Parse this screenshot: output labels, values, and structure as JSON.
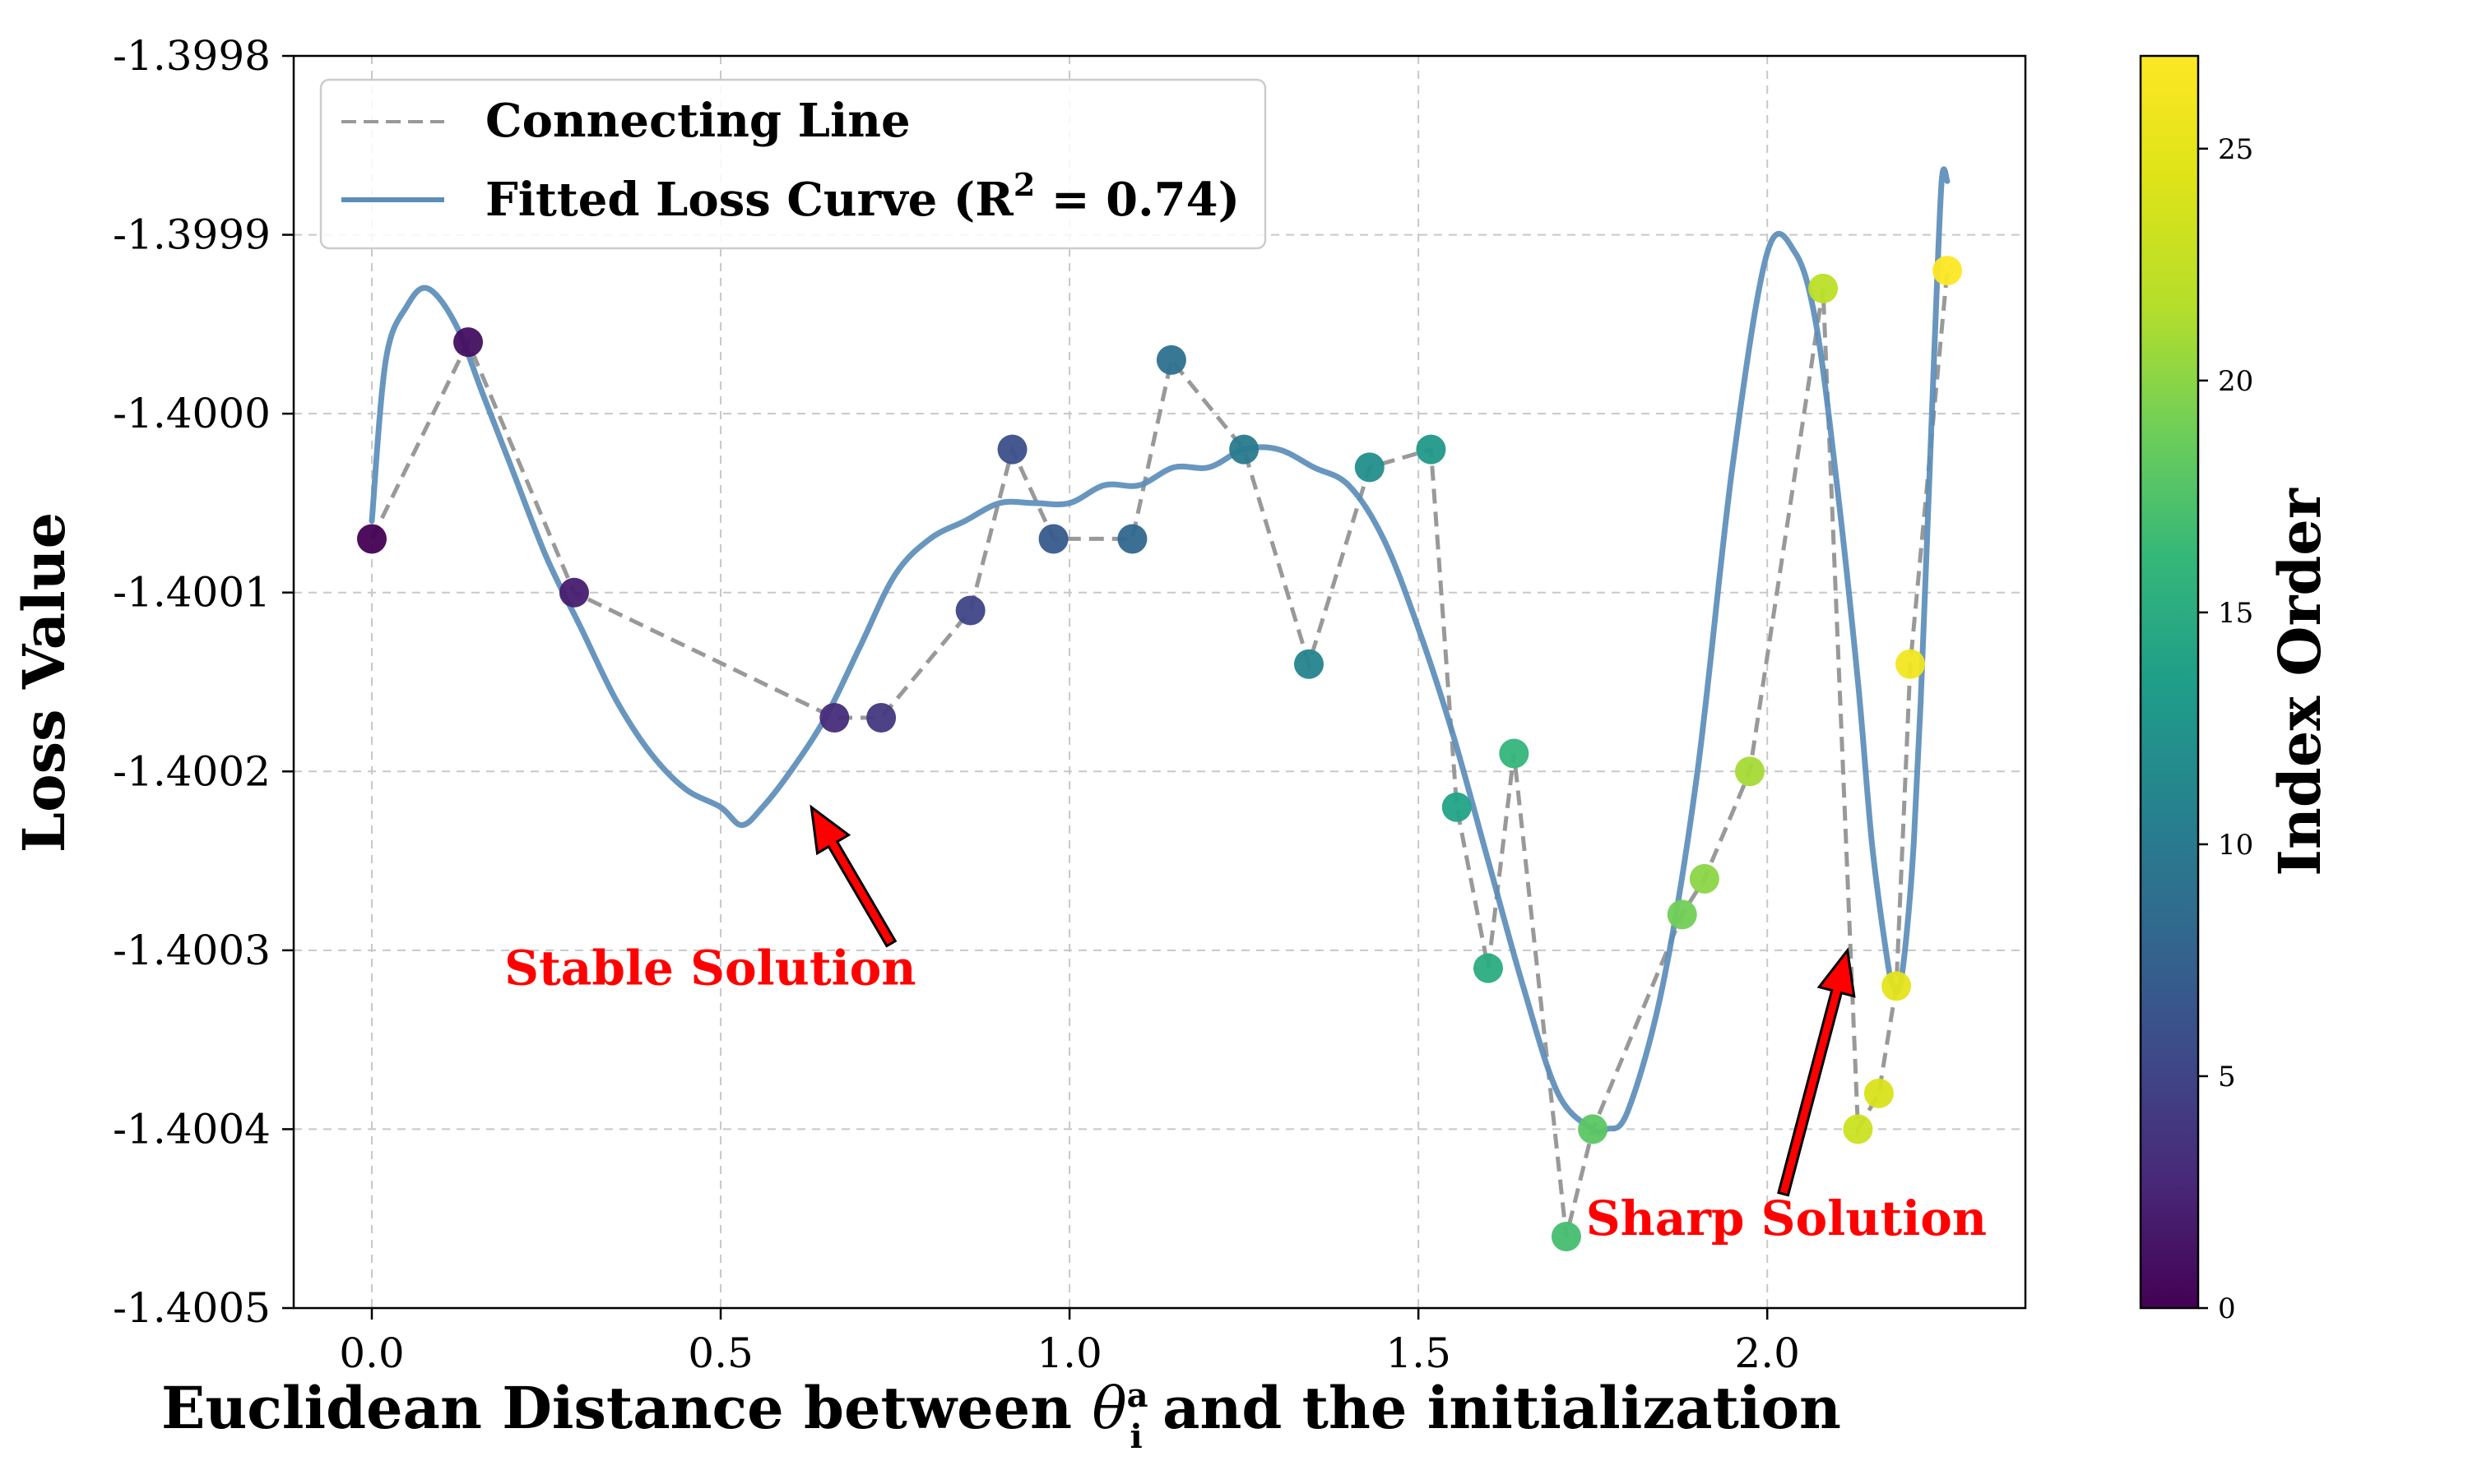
{
  "chart_data": {
    "type": "scatter",
    "xlabel_prefix": "Euclidean Distance between ",
    "xlabel_theta": "θ",
    "xlabel_sup": "a",
    "xlabel_sub": "i",
    "xlabel_suffix": " and the initialization",
    "ylabel": "Loss Value",
    "xlim": [
      -0.112,
      2.37
    ],
    "ylim": [
      -1.4005,
      -1.3998
    ],
    "xticks": [
      0.0,
      0.5,
      1.0,
      1.5,
      2.0
    ],
    "xtick_labels": [
      "0.0",
      "0.5",
      "1.0",
      "1.5",
      "2.0"
    ],
    "yticks": [
      -1.3998,
      -1.3999,
      -1.4,
      -1.4001,
      -1.4002,
      -1.4003,
      -1.4004,
      -1.4005
    ],
    "ytick_labels": [
      "-1.3998",
      "-1.3999",
      "-1.4000",
      "-1.4001",
      "-1.4002",
      "-1.4003",
      "-1.4004",
      "-1.4005"
    ],
    "grid": true,
    "legend_position": "top-left",
    "legend": {
      "connecting_line": "Connecting Line",
      "fitted_prefix": "Fitted Loss Curve (R",
      "fitted_sup": "2",
      "fitted_suffix": " = 0.74)"
    },
    "colorbar": {
      "label": "Index Order",
      "range": [
        0,
        27
      ],
      "ticks": [
        0,
        5,
        10,
        15,
        20,
        25
      ],
      "tick_labels": [
        "0",
        "5",
        "10",
        "15",
        "20",
        "25"
      ],
      "colormap": "viridis"
    },
    "points": {
      "x": [
        0.0,
        0.138,
        0.29,
        0.663,
        0.73,
        0.858,
        0.918,
        0.977,
        1.09,
        1.146,
        1.25,
        1.343,
        1.43,
        1.518,
        1.555,
        1.6,
        1.637,
        1.712,
        1.75,
        1.878,
        1.91,
        1.975,
        2.08,
        2.13,
        2.16,
        2.185,
        2.205,
        2.258
      ],
      "y": [
        -1.40007,
        -1.39996,
        -1.4001,
        -1.40017,
        -1.40017,
        -1.40011,
        -1.40002,
        -1.40007,
        -1.40007,
        -1.39997,
        -1.40002,
        -1.40014,
        -1.40003,
        -1.40002,
        -1.40022,
        -1.40031,
        -1.40019,
        -1.40046,
        -1.4004,
        -1.40028,
        -1.40026,
        -1.4002,
        -1.39993,
        -1.4004,
        -1.40038,
        -1.40032,
        -1.40014,
        -1.39992
      ],
      "index": [
        0,
        1,
        2,
        3,
        4,
        5,
        6,
        7,
        8,
        9,
        10,
        11,
        12,
        13,
        14,
        15,
        16,
        17,
        18,
        19,
        20,
        21,
        22,
        23,
        24,
        25,
        26,
        27
      ]
    },
    "fitted_curve": {
      "x": [
        0.0,
        0.02,
        0.05,
        0.08,
        0.12,
        0.16,
        0.2,
        0.25,
        0.3,
        0.35,
        0.4,
        0.45,
        0.5,
        0.53,
        0.56,
        0.6,
        0.65,
        0.7,
        0.75,
        0.8,
        0.85,
        0.9,
        0.95,
        1.0,
        1.05,
        1.1,
        1.15,
        1.2,
        1.25,
        1.3,
        1.35,
        1.4,
        1.45,
        1.5,
        1.55,
        1.6,
        1.65,
        1.7,
        1.75,
        1.77,
        1.8,
        1.85,
        1.9,
        1.95,
        2.0,
        2.04,
        2.07,
        2.1,
        2.13,
        2.15,
        2.17,
        2.18,
        2.19,
        2.2,
        2.21,
        2.22,
        2.23,
        2.24,
        2.25,
        2.258
      ],
      "y": [
        -1.40006,
        -1.39997,
        -1.39994,
        -1.39993,
        -1.39995,
        -1.39999,
        -1.40003,
        -1.40008,
        -1.40012,
        -1.40016,
        -1.40019,
        -1.40021,
        -1.40022,
        -1.40023,
        -1.40022,
        -1.4002,
        -1.40017,
        -1.40013,
        -1.40009,
        -1.40007,
        -1.40006,
        -1.40005,
        -1.40005,
        -1.40005,
        -1.40004,
        -1.40004,
        -1.40003,
        -1.40003,
        -1.40002,
        -1.40002,
        -1.40003,
        -1.40004,
        -1.40007,
        -1.40012,
        -1.40018,
        -1.40025,
        -1.40032,
        -1.40038,
        -1.4004,
        -1.4004,
        -1.40039,
        -1.40032,
        -1.4002,
        -1.40003,
        -1.39991,
        -1.39991,
        -1.39995,
        -1.40004,
        -1.40015,
        -1.40024,
        -1.4003,
        -1.40032,
        -1.40032,
        -1.40029,
        -1.40024,
        -1.40016,
        -1.40006,
        -1.39996,
        -1.39987,
        -1.39987
      ]
    },
    "annotations": [
      {
        "text": "Stable Solution",
        "xy": [
          0.63,
          -1.40022
        ],
        "xytext": [
          0.19,
          -1.40031
        ]
      },
      {
        "text": "Sharp Solution",
        "xy": [
          2.115,
          -1.4003
        ],
        "xytext": [
          1.74,
          -1.40045
        ]
      }
    ],
    "colors": {
      "connecting_line": "#999999",
      "fitted_curve": "#5b8db8",
      "annotation": "#ff0000",
      "arrow_fill": "#ff0000",
      "arrow_edge": "#000000",
      "grid": "#c8c8c8"
    }
  }
}
